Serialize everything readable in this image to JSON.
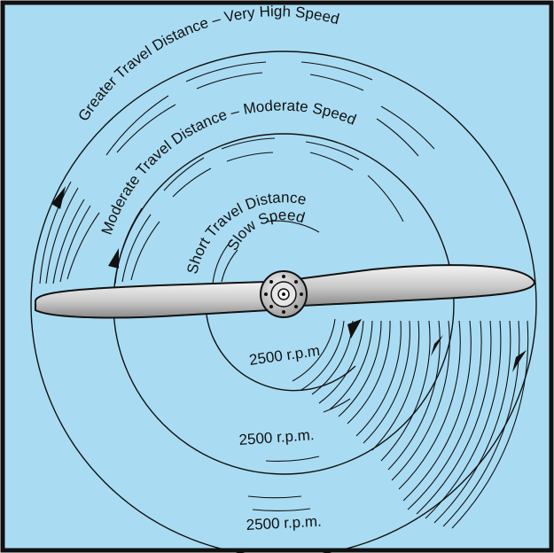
{
  "colors": {
    "background": "#a9dcf2",
    "frame": "#111111",
    "blade_light": "#e9e9e9",
    "blade_dark": "#8c8c8c",
    "hub": "#d0d0d0"
  },
  "labels": {
    "outer_path": "Greater Travel Distance – Very High Speed",
    "middle_path": "Moderate Travel Distance – Moderate Speed",
    "inner_path_line1": "Short Travel Distance",
    "inner_path_line2": "Slow Speed",
    "inner_rpm": "2500 r.p.m",
    "middle_rpm": "2500 r.p.m.",
    "outer_rpm": "2500 r.p.m."
  },
  "icons": {
    "propeller": "propeller-icon",
    "arrow": "arrowhead-icon"
  }
}
